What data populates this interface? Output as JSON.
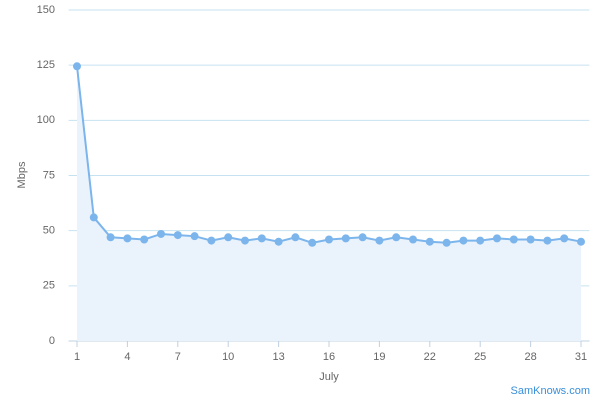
{
  "chart_data": {
    "type": "line",
    "x": [
      1,
      2,
      3,
      4,
      5,
      6,
      7,
      8,
      9,
      10,
      11,
      12,
      13,
      14,
      15,
      16,
      17,
      18,
      19,
      20,
      21,
      22,
      23,
      24,
      25,
      26,
      27,
      28,
      29,
      30,
      31
    ],
    "values": [
      124.5,
      56,
      47,
      46.5,
      46,
      48.5,
      48,
      47.5,
      45.5,
      47,
      45.5,
      46.5,
      45,
      47,
      44.5,
      46,
      46.5,
      47,
      45.5,
      47,
      46,
      45,
      44.5,
      45.5,
      45.5,
      46.5,
      46,
      46,
      45.5,
      46.5,
      45
    ],
    "color": "#7cb5ec",
    "area_color": "#eaf3fc",
    "xlim": [
      0.5,
      31.5
    ],
    "xticks": [
      1,
      4,
      7,
      10,
      13,
      16,
      19,
      22,
      25,
      28,
      31
    ],
    "ylim": [
      0,
      150
    ],
    "yticks": [
      0,
      25,
      50,
      75,
      100,
      125,
      150
    ],
    "grid": true,
    "x_label": "July",
    "y_label": "Mbps",
    "credit": "SamKnows.com"
  }
}
